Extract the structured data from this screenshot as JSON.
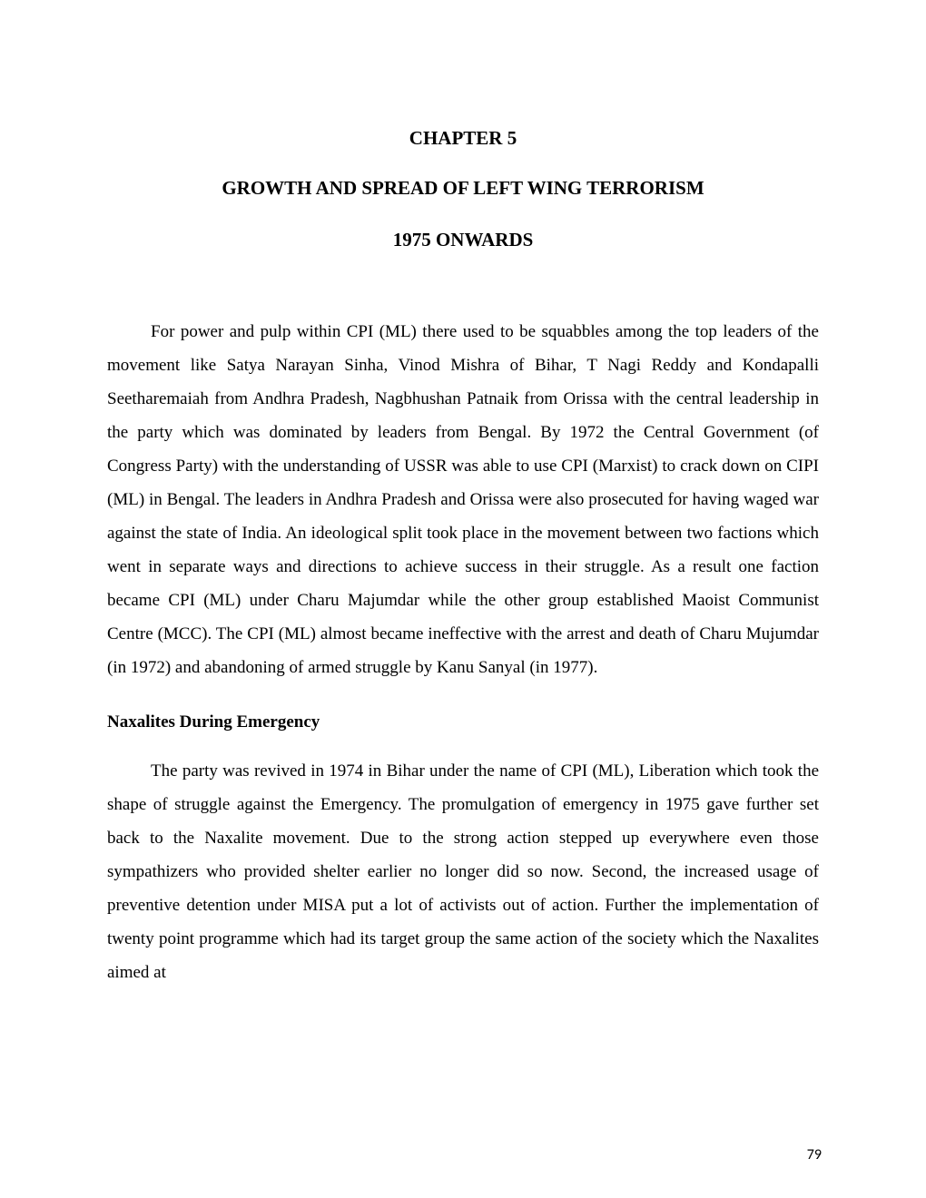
{
  "chapter": {
    "label": "CHAPTER 5",
    "title_line_1": "GROWTH AND SPREAD OF LEFT WING TERRORISM",
    "title_line_2": "1975 ONWARDS"
  },
  "paragraphs": {
    "p1": "For power and pulp within CPI (ML) there used to be squabbles among the top leaders of the movement like Satya Narayan Sinha, Vinod Mishra of Bihar, T Nagi Reddy and Kondapalli Seetharemaiah from Andhra Pradesh, Nagbhushan Patnaik from Orissa with the central leadership in the party which was dominated by leaders from Bengal. By 1972 the Central Government (of Congress Party) with the understanding of USSR was able to use CPI (Marxist) to crack down on CIPI (ML) in Bengal. The leaders in Andhra Pradesh and Orissa were also prosecuted for having waged war against the state of India. An ideological split took place in the movement between two factions which went in separate ways and directions to achieve success in their struggle. As a result one faction became CPI (ML) under Charu Majumdar while the other group established Maoist Communist Centre (MCC). The CPI (ML) almost became ineffective with the arrest and death of Charu Mujumdar (in 1972) and abandoning of armed struggle by Kanu Sanyal (in 1977).",
    "section_heading": "Naxalites During Emergency",
    "p2": "The party was revived in 1974 in Bihar under the name of CPI (ML), Liberation which took the shape of struggle against the Emergency. The promulgation of emergency in 1975 gave further set back to the Naxalite movement. Due to the strong action stepped up everywhere even those sympathizers who provided shelter earlier no longer did so now. Second, the increased usage of preventive detention under MISA put a lot of activists out of action. Further the implementation of twenty point programme which had its target group the same action of the society which the Naxalites aimed at"
  },
  "page_number": "79"
}
